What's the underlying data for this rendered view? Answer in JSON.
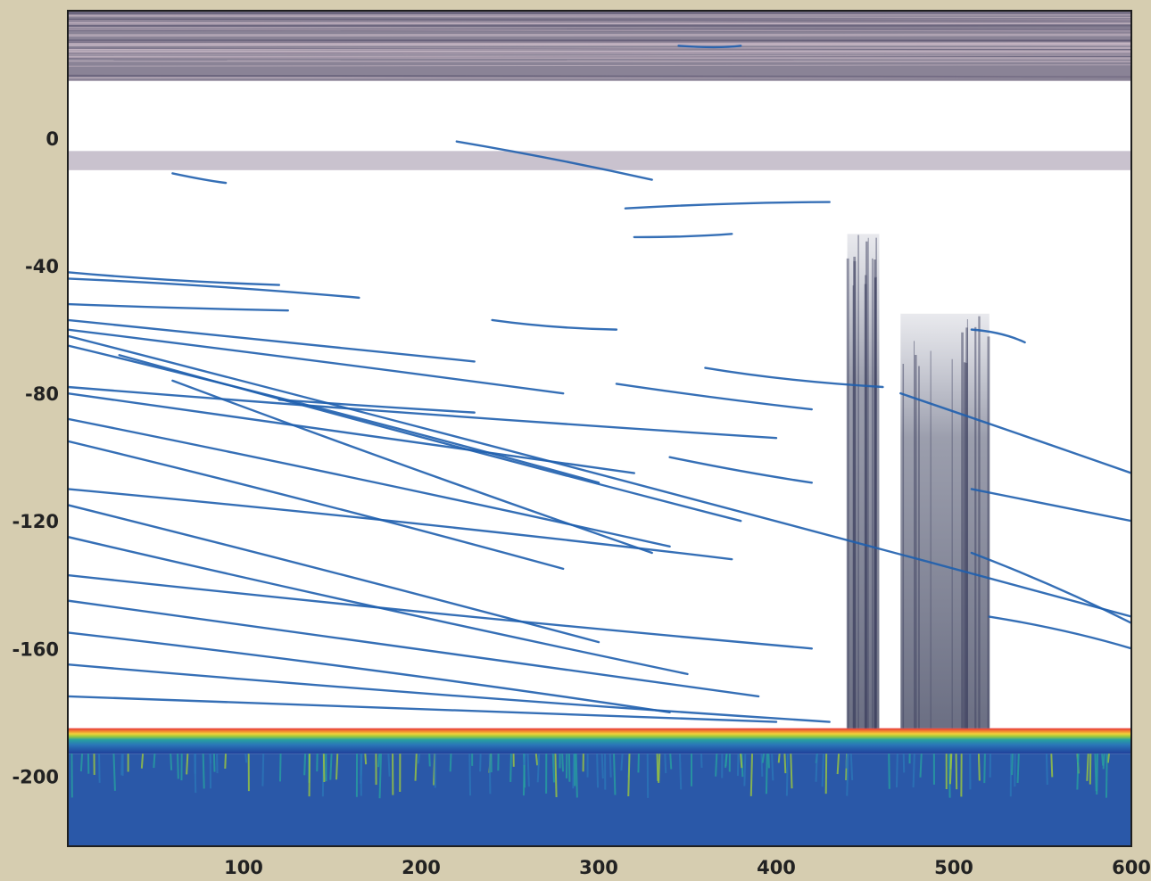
{
  "chart_data": {
    "type": "heatmap",
    "title": "",
    "xlabel": "",
    "ylabel": "",
    "xlim": [
      1,
      600
    ],
    "ylim": [
      -222,
      40
    ],
    "x_ticks": [
      {
        "value": 100,
        "label": "100"
      },
      {
        "value": 200,
        "label": "200"
      },
      {
        "value": 300,
        "label": "300"
      },
      {
        "value": 400,
        "label": "400"
      },
      {
        "value": 500,
        "label": "500"
      },
      {
        "value": 600,
        "label": "600"
      }
    ],
    "y_ticks": [
      {
        "value": 0,
        "label": "0"
      },
      {
        "value": -40,
        "label": "-40"
      },
      {
        "value": -80,
        "label": "-80"
      },
      {
        "value": -120,
        "label": "-120"
      },
      {
        "value": -160,
        "label": "-160"
      },
      {
        "value": -200,
        "label": "-200"
      }
    ],
    "colormap": [
      "#1f3f9a",
      "#2a76b8",
      "#27a0a0",
      "#9ec93c",
      "#f0d23a",
      "#f08a30",
      "#e8323a"
    ],
    "line_color": "#1f5fae",
    "background_color": "#ffffff",
    "grid": false,
    "legend": "none",
    "bands": [
      {
        "name": "surface-band",
        "y_from": 40,
        "y_to": 18
      },
      {
        "name": "layer-band",
        "y_from": -4,
        "y_to": -10
      },
      {
        "name": "seabed-return",
        "y_from": -185,
        "y_to": -193
      },
      {
        "name": "sub-bottom",
        "y_from": -193,
        "y_to": -222
      }
    ],
    "vertical_interference": [
      {
        "x_from": 440,
        "x_to": 458,
        "y_top": -30,
        "y_bottom": -185
      },
      {
        "x_from": 470,
        "x_to": 520,
        "y_top": -55,
        "y_bottom": -185
      }
    ],
    "traces": [
      {
        "x": [
          1,
          120
        ],
        "y": [
          -42,
          -46
        ]
      },
      {
        "x": [
          1,
          165
        ],
        "y": [
          -44,
          -50
        ]
      },
      {
        "x": [
          1,
          125
        ],
        "y": [
          -52,
          -54
        ]
      },
      {
        "x": [
          1,
          230
        ],
        "y": [
          -57,
          -70
        ]
      },
      {
        "x": [
          1,
          280
        ],
        "y": [
          -60,
          -80
        ]
      },
      {
        "x": [
          1,
          600
        ],
        "y": [
          -62,
          -150
        ]
      },
      {
        "x": [
          1,
          300
        ],
        "y": [
          -65,
          -108
        ]
      },
      {
        "x": [
          30,
          380
        ],
        "y": [
          -68,
          -120
        ]
      },
      {
        "x": [
          1,
          400
        ],
        "y": [
          -78,
          -94
        ]
      },
      {
        "x": [
          1,
          320
        ],
        "y": [
          -80,
          -105
        ]
      },
      {
        "x": [
          60,
          330
        ],
        "y": [
          -76,
          -130
        ]
      },
      {
        "x": [
          1,
          340
        ],
        "y": [
          -88,
          -128
        ]
      },
      {
        "x": [
          1,
          280
        ],
        "y": [
          -95,
          -135
        ]
      },
      {
        "x": [
          1,
          375
        ],
        "y": [
          -110,
          -132
        ]
      },
      {
        "x": [
          1,
          300
        ],
        "y": [
          -115,
          -158
        ]
      },
      {
        "x": [
          1,
          350
        ],
        "y": [
          -125,
          -168
        ]
      },
      {
        "x": [
          1,
          420
        ],
        "y": [
          -137,
          -160
        ]
      },
      {
        "x": [
          1,
          390
        ],
        "y": [
          -145,
          -175
        ]
      },
      {
        "x": [
          1,
          340
        ],
        "y": [
          -155,
          -180
        ]
      },
      {
        "x": [
          1,
          430
        ],
        "y": [
          -165,
          -183
        ]
      },
      {
        "x": [
          1,
          400
        ],
        "y": [
          -175,
          -183
        ]
      },
      {
        "x": [
          360,
          460
        ],
        "y": [
          -72,
          -78
        ]
      },
      {
        "x": [
          310,
          420
        ],
        "y": [
          -77,
          -85
        ]
      },
      {
        "x": [
          470,
          600
        ],
        "y": [
          -80,
          -105
        ]
      },
      {
        "x": [
          220,
          330
        ],
        "y": [
          -1,
          -13
        ]
      },
      {
        "x": [
          60,
          90
        ],
        "y": [
          -11,
          -14
        ]
      },
      {
        "x": [
          315,
          430
        ],
        "y": [
          -22,
          -20
        ]
      },
      {
        "x": [
          320,
          375
        ],
        "y": [
          -31,
          -30
        ]
      },
      {
        "x": [
          510,
          540
        ],
        "y": [
          -60,
          -64
        ]
      },
      {
        "x": [
          340,
          420
        ],
        "y": [
          -100,
          -108
        ]
      },
      {
        "x": [
          510,
          600
        ],
        "y": [
          -110,
          -120
        ]
      },
      {
        "x": [
          510,
          600
        ],
        "y": [
          -130,
          -152
        ]
      },
      {
        "x": [
          520,
          600
        ],
        "y": [
          -150,
          -160
        ]
      },
      {
        "x": [
          345,
          380
        ],
        "y": [
          29,
          29
        ]
      },
      {
        "x": [
          120,
          230
        ],
        "y": [
          -82,
          -86
        ]
      },
      {
        "x": [
          240,
          310
        ],
        "y": [
          -57,
          -60
        ]
      }
    ]
  }
}
